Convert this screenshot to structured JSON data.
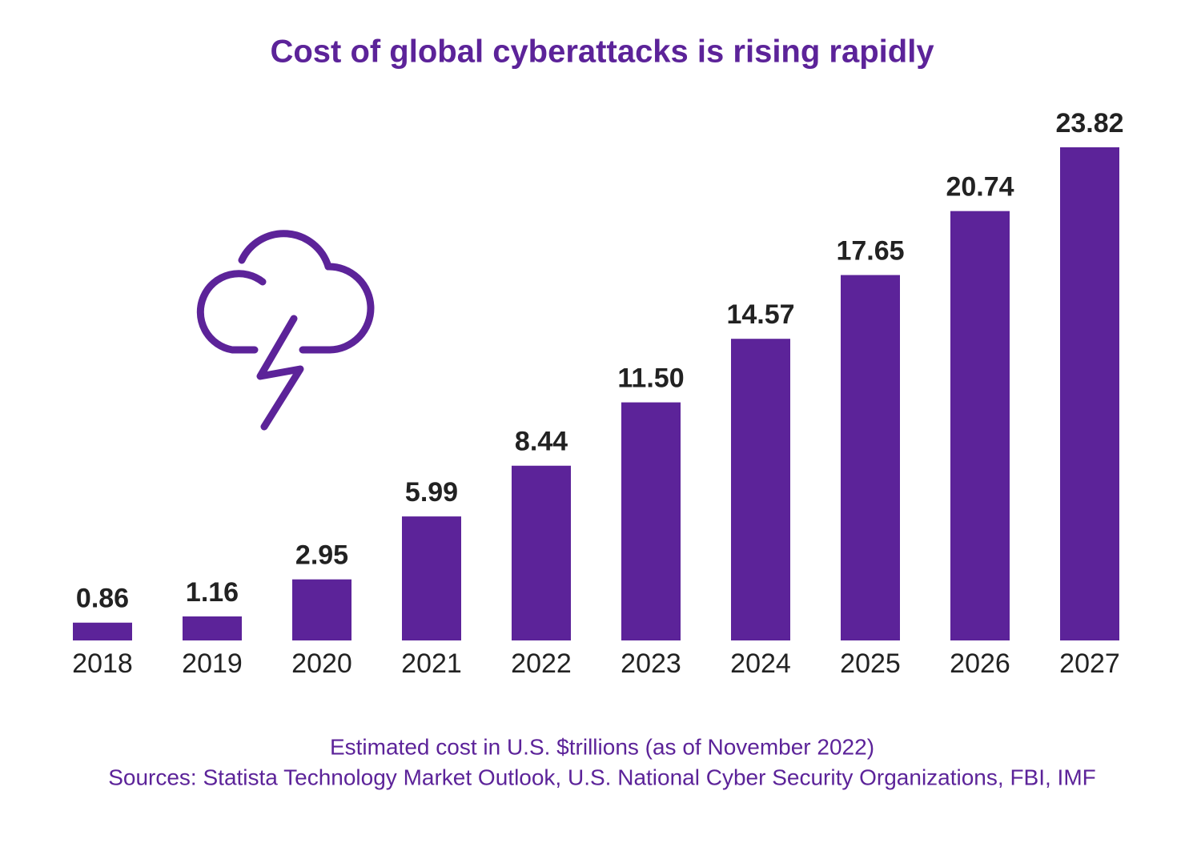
{
  "chart_data": {
    "type": "bar",
    "title": "Cost of global cyberattacks is rising rapidly",
    "categories": [
      "2018",
      "2019",
      "2020",
      "2021",
      "2022",
      "2023",
      "2024",
      "2025",
      "2026",
      "2027"
    ],
    "values": [
      0.86,
      1.16,
      2.95,
      5.99,
      8.44,
      11.5,
      14.57,
      17.65,
      20.74,
      23.82
    ],
    "value_labels": [
      "0.86",
      "1.16",
      "2.95",
      "5.99",
      "8.44",
      "11.50",
      "14.57",
      "17.65",
      "20.74",
      "23.82"
    ],
    "color": "#5c2399",
    "subtitle": "Estimated cost in U.S. $trillions (as of November 2022)",
    "source": "Sources: Statista Technology Market Outlook, U.S. National Cyber Security Organizations, FBI, IMF"
  }
}
